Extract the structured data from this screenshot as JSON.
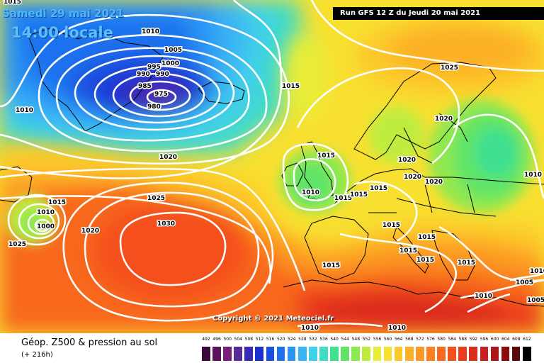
{
  "header": {
    "date": "Samedi 29 mai 2021",
    "time": "14:00 locale",
    "run": "Run GFS 12 Z du Jeudi 20 mai 2021",
    "copyright": "Copyright © 2021 Meteociel.fr"
  },
  "footer": {
    "title": "Géop. Z500 & pression au sol",
    "subtitle": "(+ 216h)"
  },
  "legend": {
    "labels": [
      "492",
      "496",
      "500",
      "504",
      "508",
      "512",
      "516",
      "520",
      "524",
      "528",
      "532",
      "536",
      "540",
      "544",
      "548",
      "552",
      "556",
      "560",
      "564",
      "568",
      "572",
      "576",
      "580",
      "584",
      "588",
      "592",
      "596",
      "600",
      "604",
      "608",
      "612"
    ],
    "colors": [
      "#3a0a3a",
      "#5a145c",
      "#7a1e7a",
      "#5a2a9a",
      "#3a2ab8",
      "#1a30d0",
      "#1a50e0",
      "#1e72ee",
      "#2a96f4",
      "#3ab4f4",
      "#40d0e8",
      "#40dcc4",
      "#40e090",
      "#60e468",
      "#90e850",
      "#c0ec40",
      "#e8ee38",
      "#f8e030",
      "#fcc82c",
      "#fcb028",
      "#fc9824",
      "#fc8020",
      "#f8681e",
      "#f4501c",
      "#ec3c1c",
      "#dc2c1c",
      "#c82020",
      "#ac1616",
      "#8c0c0c",
      "#5c0808",
      "#000000"
    ]
  },
  "isobars": {
    "labels": [
      "1015",
      "1010",
      "1005",
      "1000",
      "995",
      "990",
      "990",
      "985",
      "975",
      "980",
      "1010",
      "1015",
      "1020",
      "1025",
      "1015",
      "1010",
      "1000",
      "1015",
      "1025",
      "1020",
      "1030",
      "1015",
      "1015",
      "1010",
      "1015",
      "1015",
      "1015",
      "1020",
      "1020",
      "1020",
      "1025",
      "1020",
      "1010",
      "1015",
      "1015",
      "1015",
      "1015",
      "1010",
      "1010",
      "1005",
      "1005",
      "1010",
      "1010"
    ]
  },
  "colors": {
    "isobar": "#ffffff",
    "coast": "#000000",
    "run_bg": "#000000"
  }
}
